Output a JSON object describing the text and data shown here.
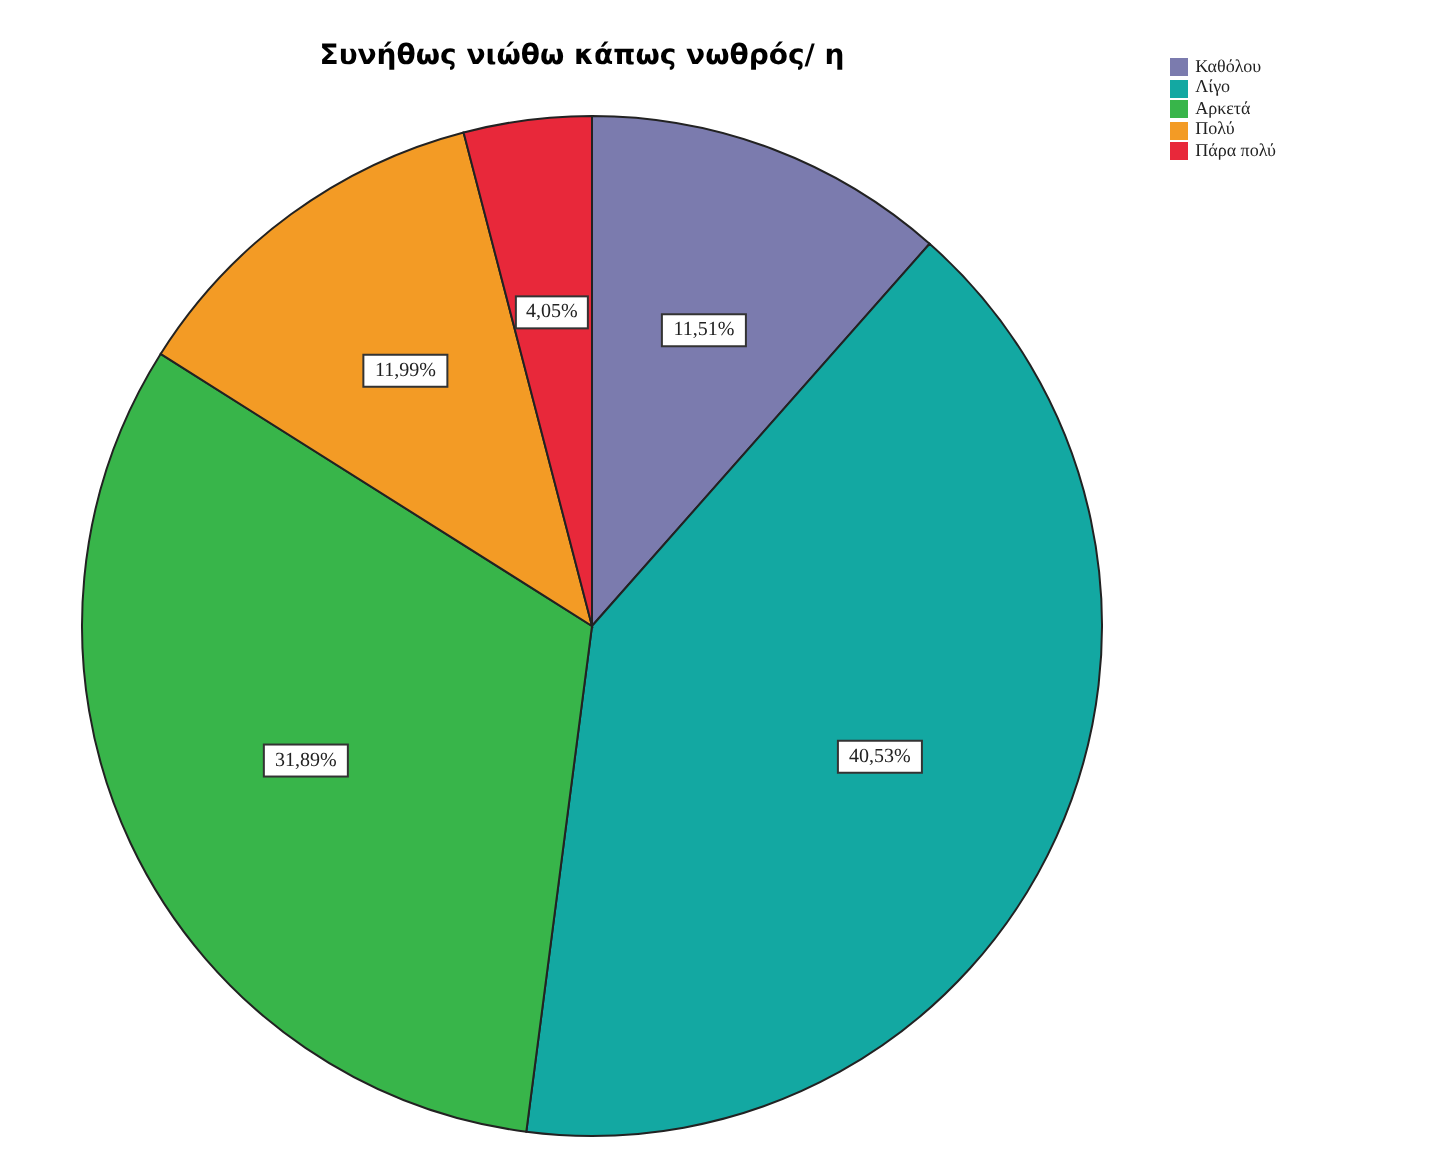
{
  "chart_data": {
    "type": "pie",
    "title": "Συνήθως νιώθω κάπως νωθρός/ η",
    "categories": [
      "Καθόλου",
      "Λίγο",
      "Αρκετά",
      "Πολύ",
      "Πάρα πολύ"
    ],
    "values": [
      11.51,
      40.53,
      31.89,
      11.99,
      4.05
    ],
    "value_labels": [
      "11,51%",
      "40,53%",
      "31,89%",
      "11,99%",
      "4,05%"
    ],
    "colors": [
      "#7b7bae",
      "#13a8a2",
      "#38b54a",
      "#f39b25",
      "#e8283a"
    ],
    "legend": "top right"
  }
}
